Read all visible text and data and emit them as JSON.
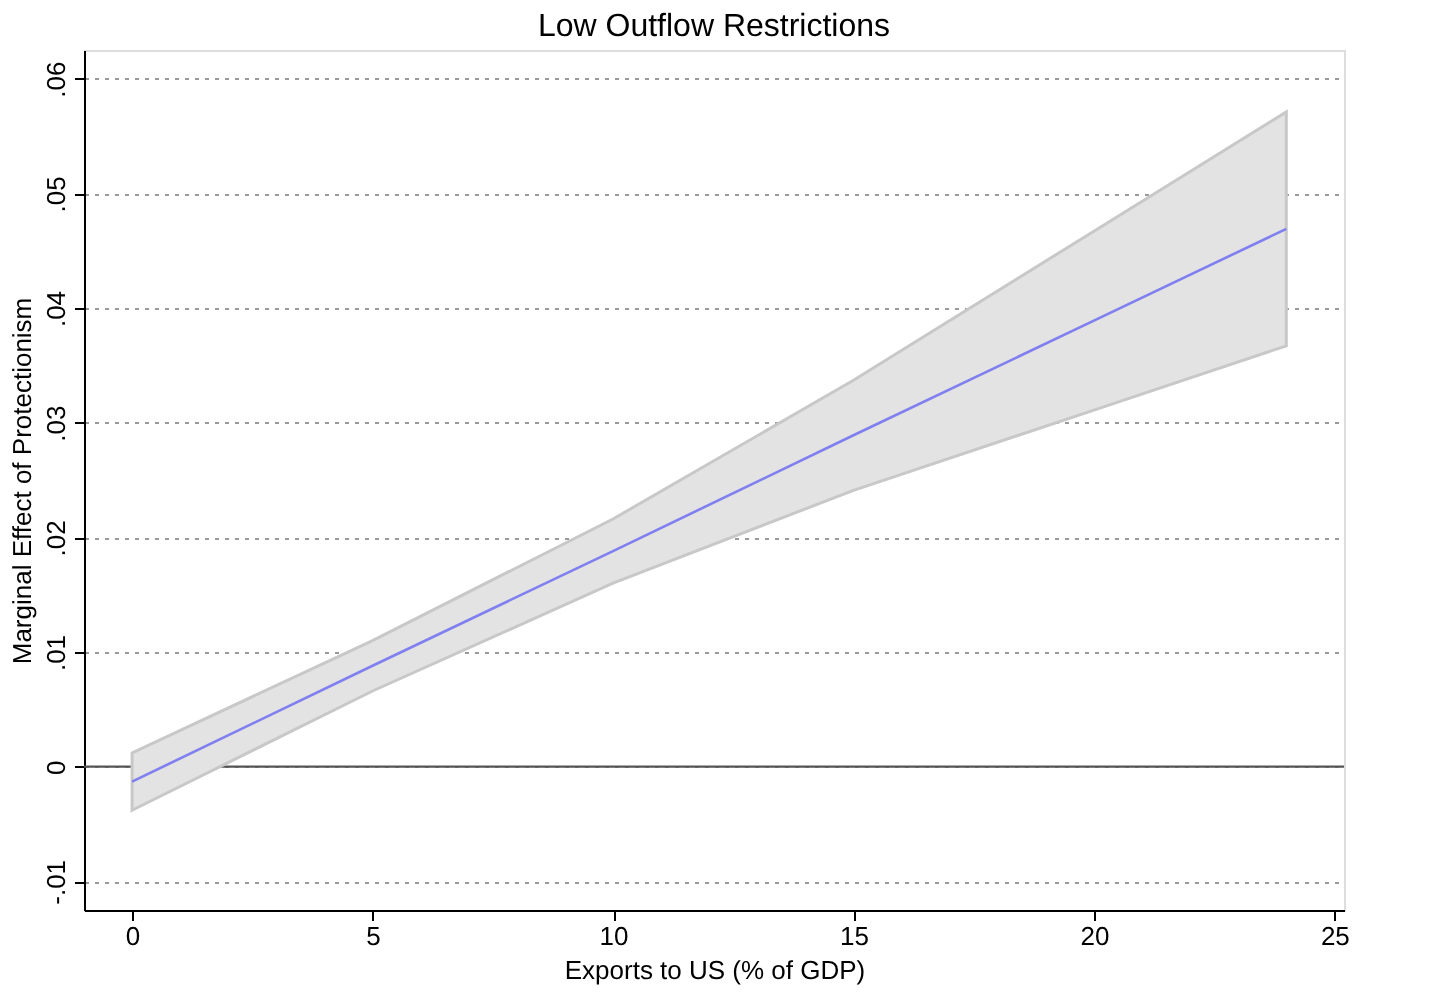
{
  "chart_data": {
    "type": "line",
    "title": "Low Outflow Restrictions",
    "xlabel": "Exports to US (% of GDP)",
    "ylabel": "Marginal Effect of Protectionism",
    "x": [
      0,
      5,
      10,
      15,
      20,
      24
    ],
    "series": [
      {
        "color": "#7f7ff0",
        "values": [
          -0.0013,
          0.0088,
          0.0188,
          0.0289,
          0.0389,
          0.0469
        ],
        "lower": [
          -0.0038,
          0.0066,
          0.016,
          0.0241,
          0.0311,
          0.0367
        ],
        "upper": [
          0.0012,
          0.011,
          0.0216,
          0.0337,
          0.0467,
          0.0571
        ]
      }
    ],
    "xlim": [
      -1,
      25.2
    ],
    "xticks": [
      0,
      5,
      10,
      15,
      20,
      25
    ],
    "ylim": [
      -0.0125,
      0.0625
    ],
    "yticks": [
      {
        "value": -0.01,
        "label": "-.01"
      },
      {
        "value": 0,
        "label": "0"
      },
      {
        "value": 0.01,
        "label": ".01"
      },
      {
        "value": 0.02,
        "label": ".02"
      },
      {
        "value": 0.03,
        "label": ".03"
      },
      {
        "value": 0.04,
        "label": ".04"
      },
      {
        "value": 0.05,
        "label": ".05"
      },
      {
        "value": 0.06,
        "label": ".06"
      }
    ],
    "ref_lines": [
      {
        "axis": "y",
        "value": 0,
        "color": "#555555"
      }
    ],
    "grid": "y"
  }
}
